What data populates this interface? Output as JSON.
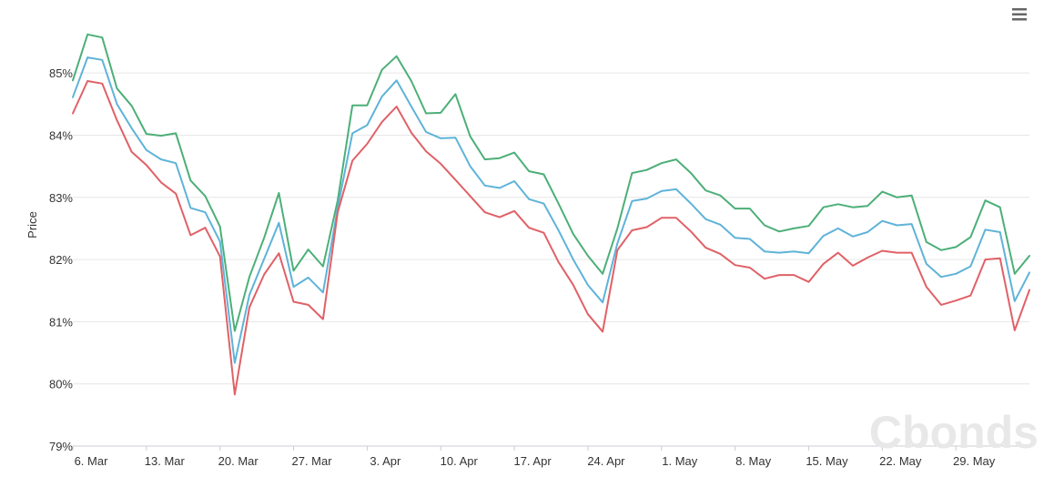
{
  "chart_data": {
    "type": "line",
    "title": "",
    "xlabel": "",
    "ylabel": "Price",
    "ylim": [
      79,
      86.1
    ],
    "y_unit": "%",
    "y_ticks": [
      79,
      80,
      81,
      82,
      83,
      84,
      85
    ],
    "y_tick_labels": [
      "79%",
      "80%",
      "81%",
      "82%",
      "83%",
      "84%",
      "85%"
    ],
    "x_tick_labels": [
      "6. Mar",
      "13. Mar",
      "20. Mar",
      "27. Mar",
      "3. Apr",
      "10. Apr",
      "17. Apr",
      "24. Apr",
      "1. May",
      "8. May",
      "15. May",
      "22. May",
      "29. May"
    ],
    "grid": "horizontal",
    "legend": "none",
    "series": [
      {
        "color": "#4caf78",
        "values": [
          84.88,
          85.62,
          85.57,
          84.75,
          84.47,
          84.02,
          83.99,
          84.03,
          83.27,
          83.02,
          82.53,
          80.85,
          81.72,
          82.35,
          83.07,
          81.82,
          82.16,
          81.89,
          82.95,
          84.48,
          84.48,
          85.05,
          85.27,
          84.87,
          84.35,
          84.36,
          84.66,
          83.98,
          83.61,
          83.63,
          83.72,
          83.42,
          83.37,
          82.9,
          82.41,
          82.06,
          81.77,
          82.5,
          83.39,
          83.44,
          83.55,
          83.61,
          83.39,
          83.11,
          83.03,
          82.82,
          82.82,
          82.55,
          82.45,
          82.5,
          82.54,
          82.84,
          82.89,
          82.84,
          82.86,
          83.09,
          83.0,
          83.03,
          82.28,
          82.15,
          82.2,
          82.36,
          82.95,
          82.84,
          81.77,
          82.06
        ]
      },
      {
        "color": "#5fb3d8",
        "values": [
          84.61,
          85.25,
          85.21,
          84.5,
          84.11,
          83.76,
          83.61,
          83.55,
          82.83,
          82.76,
          82.29,
          80.34,
          81.43,
          82.01,
          82.59,
          81.56,
          81.71,
          81.47,
          82.83,
          84.03,
          84.16,
          84.62,
          84.88,
          84.46,
          84.05,
          83.95,
          83.96,
          83.5,
          83.19,
          83.15,
          83.26,
          82.97,
          82.9,
          82.47,
          82.0,
          81.59,
          81.31,
          82.26,
          82.94,
          82.98,
          83.1,
          83.13,
          82.9,
          82.65,
          82.56,
          82.35,
          82.33,
          82.13,
          82.11,
          82.13,
          82.1,
          82.38,
          82.5,
          82.37,
          82.44,
          82.62,
          82.55,
          82.57,
          81.93,
          81.72,
          81.77,
          81.89,
          82.48,
          82.44,
          81.33,
          81.79
        ]
      },
      {
        "color": "#e06167",
        "values": [
          84.35,
          84.87,
          84.83,
          84.24,
          83.73,
          83.52,
          83.24,
          83.06,
          82.39,
          82.51,
          82.05,
          79.83,
          81.23,
          81.76,
          82.1,
          81.32,
          81.27,
          81.04,
          82.76,
          83.59,
          83.86,
          84.21,
          84.46,
          84.04,
          83.74,
          83.54,
          83.28,
          83.02,
          82.76,
          82.68,
          82.78,
          82.51,
          82.43,
          81.96,
          81.59,
          81.12,
          80.84,
          82.15,
          82.47,
          82.52,
          82.67,
          82.67,
          82.45,
          82.19,
          82.09,
          81.91,
          81.87,
          81.69,
          81.75,
          81.75,
          81.64,
          81.93,
          82.11,
          81.9,
          82.03,
          82.14,
          82.11,
          82.11,
          81.56,
          81.27,
          81.34,
          81.42,
          82.0,
          82.02,
          80.86,
          81.51
        ]
      }
    ]
  },
  "ui": {
    "menu_icon": "hamburger-menu-icon",
    "watermark": "Cbonds"
  }
}
